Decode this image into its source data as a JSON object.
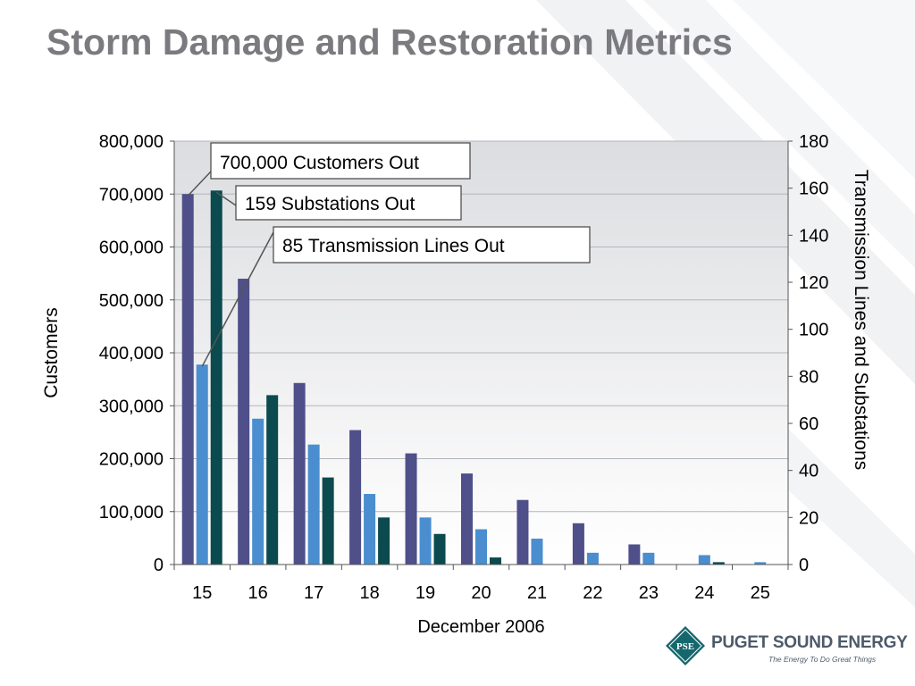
{
  "slide": {
    "title": "Storm Damage and Restoration Metrics"
  },
  "logo": {
    "abbrev": "PSE",
    "name": "PUGET SOUND ENERGY",
    "tagline": "The Energy To Do Great Things"
  },
  "chart_data": {
    "type": "bar",
    "xlabel": "December 2006",
    "ylabel": "Customers",
    "y2label": "Transmission Lines and Substations",
    "ylim": [
      0,
      800000
    ],
    "y2lim": [
      0,
      180
    ],
    "yticks": [
      "0",
      "100,000",
      "200,000",
      "300,000",
      "400,000",
      "500,000",
      "600,000",
      "700,000",
      "800,000"
    ],
    "y2ticks": [
      "0",
      "20",
      "40",
      "60",
      "80",
      "100",
      "120",
      "140",
      "160",
      "180"
    ],
    "categories": [
      "15",
      "16",
      "17",
      "18",
      "19",
      "20",
      "21",
      "22",
      "23",
      "24",
      "25"
    ],
    "grid": true,
    "series": [
      {
        "axis": "left",
        "color": "#4f4f8a",
        "values": [
          700000,
          540000,
          343000,
          254000,
          210000,
          172000,
          122000,
          78000,
          38000,
          0,
          0
        ]
      },
      {
        "axis": "right",
        "color": "#4a8ed0",
        "values": [
          85,
          62,
          51,
          30,
          20,
          15,
          11,
          5,
          5,
          4,
          1
        ]
      },
      {
        "axis": "right",
        "color": "#0b4a4e",
        "values": [
          159,
          72,
          37,
          20,
          13,
          3,
          0,
          0,
          0,
          1,
          0
        ]
      }
    ],
    "annotations": [
      {
        "text": "700,000 Customers Out"
      },
      {
        "text": "159 Substations Out"
      },
      {
        "text": "85 Transmission Lines Out"
      }
    ]
  }
}
